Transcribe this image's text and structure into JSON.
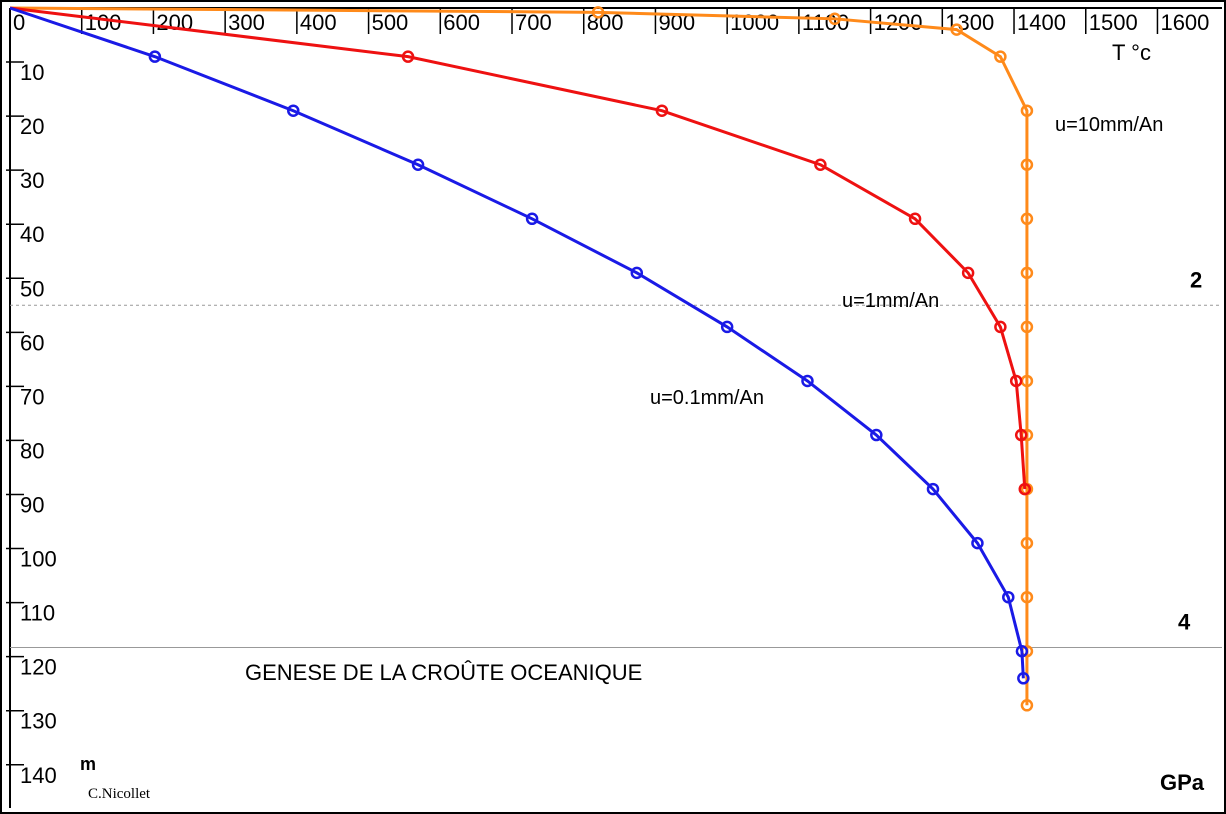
{
  "chart_data": {
    "type": "line",
    "title": "GENESE DE LA CROÛTE OCEANIQUE",
    "credit": "C.Nicollet",
    "x_label": "T °c",
    "y_label": "m",
    "pressure_label": "GPa",
    "xlim": [
      0,
      1690
    ],
    "ylim": [
      0,
      148
    ],
    "y_inverted": true,
    "xticks": [
      0,
      100,
      200,
      300,
      400,
      500,
      600,
      700,
      800,
      900,
      1000,
      1100,
      1200,
      1300,
      1400,
      1500,
      1600
    ],
    "yticks": [
      10,
      20,
      30,
      40,
      50,
      60,
      70,
      80,
      90,
      100,
      110,
      120,
      130,
      140
    ],
    "pressure_lines": [
      {
        "value": 2,
        "depth": 55,
        "style": "dashed"
      },
      {
        "value": 4,
        "depth": 118.3,
        "style": "solid"
      }
    ],
    "series": [
      {
        "name": "u=10mm/An",
        "color": "#ff8a1a",
        "x": [
          0,
          820,
          1150,
          1320,
          1381,
          1418,
          1418,
          1418,
          1418,
          1418,
          1418,
          1418,
          1418,
          1418,
          1418,
          1418,
          1418
        ],
        "values": [
          0,
          0.8,
          2,
          4,
          9,
          19,
          29,
          39,
          49,
          59,
          69,
          79,
          89,
          99,
          109,
          119,
          129
        ]
      },
      {
        "name": "u=1mm/An",
        "color": "#ee1111",
        "x": [
          0,
          555,
          909,
          1130,
          1262,
          1336,
          1381,
          1403,
          1410,
          1415
        ],
        "values": [
          0,
          9,
          19,
          29,
          39,
          49,
          59,
          69,
          79,
          89
        ]
      },
      {
        "name": "u=0.1mm/An",
        "color": "#1a1ae6",
        "x": [
          0,
          202,
          395,
          569,
          728,
          874,
          1000,
          1112,
          1208,
          1287,
          1349,
          1392,
          1411,
          1413
        ],
        "values": [
          0,
          9,
          19,
          29,
          39,
          49,
          59,
          69,
          79,
          89,
          99,
          109,
          119,
          124
        ]
      }
    ]
  }
}
